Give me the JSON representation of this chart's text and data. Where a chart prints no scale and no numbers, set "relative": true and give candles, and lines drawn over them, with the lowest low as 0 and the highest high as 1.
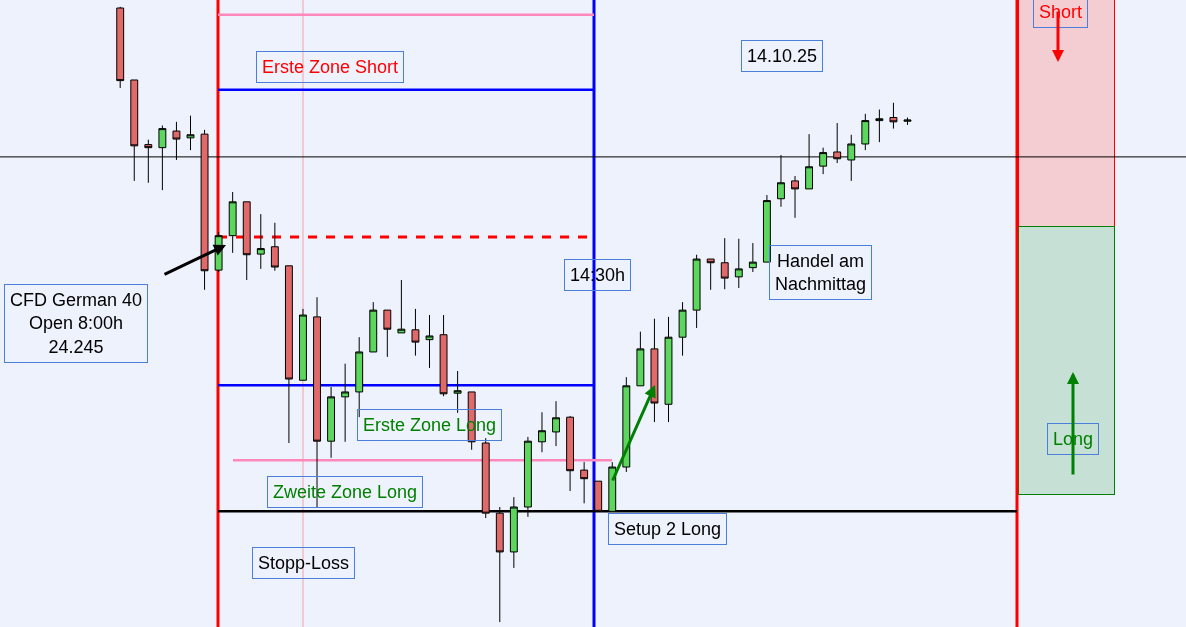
{
  "chart_data": {
    "type": "candlestick",
    "relative": true,
    "categories": [
      null,
      null,
      null,
      null,
      null,
      null,
      null,
      null,
      null,
      null,
      null,
      null,
      null,
      null,
      null,
      null,
      null,
      null,
      null,
      null,
      null,
      null,
      null,
      null,
      null,
      null,
      null,
      null,
      null,
      null,
      null,
      null,
      null,
      null,
      null,
      null,
      null,
      null,
      null,
      null,
      null,
      null,
      null,
      null,
      null,
      null,
      null,
      null,
      null,
      null,
      null,
      null,
      null,
      null,
      null,
      null,
      null
    ],
    "ohlc": [
      [
        0.998,
        1.0,
        0.868,
        0.88
      ],
      [
        0.881,
        0.881,
        0.717,
        0.774
      ],
      [
        0.776,
        0.784,
        0.714,
        0.771
      ],
      [
        0.771,
        0.807,
        0.702,
        0.802
      ],
      [
        0.798,
        0.813,
        0.751,
        0.785
      ],
      [
        0.787,
        0.823,
        0.767,
        0.792
      ],
      [
        0.793,
        0.8,
        0.54,
        0.571
      ],
      [
        0.572,
        0.634,
        0.569,
        0.628
      ],
      [
        0.628,
        0.699,
        0.6,
        0.683
      ],
      [
        0.683,
        0.683,
        0.556,
        0.597
      ],
      [
        0.598,
        0.663,
        0.574,
        0.607
      ],
      [
        0.61,
        0.649,
        0.571,
        0.577
      ],
      [
        0.579,
        0.579,
        0.291,
        0.395
      ],
      [
        0.393,
        0.509,
        0.393,
        0.499
      ],
      [
        0.496,
        0.528,
        0.187,
        0.294
      ],
      [
        0.294,
        0.382,
        0.267,
        0.366
      ],
      [
        0.366,
        0.42,
        0.293,
        0.374
      ],
      [
        0.374,
        0.463,
        0.333,
        0.439
      ],
      [
        0.439,
        0.52,
        0.439,
        0.507
      ],
      [
        0.507,
        0.507,
        0.431,
        0.476
      ],
      [
        0.47,
        0.556,
        0.47,
        0.476
      ],
      [
        0.475,
        0.509,
        0.433,
        0.455
      ],
      [
        0.459,
        0.499,
        0.413,
        0.465
      ],
      [
        0.467,
        0.499,
        0.367,
        0.371
      ],
      [
        0.372,
        0.408,
        0.34,
        0.376
      ],
      [
        0.374,
        0.374,
        0.28,
        0.293
      ],
      [
        0.291,
        0.299,
        0.169,
        0.177
      ],
      [
        0.177,
        0.187,
        0.0,
        0.114
      ],
      [
        0.114,
        0.203,
        0.088,
        0.187
      ],
      [
        0.187,
        0.301,
        0.171,
        0.294
      ],
      [
        0.293,
        0.341,
        0.276,
        0.311
      ],
      [
        0.309,
        0.359,
        0.286,
        0.332
      ],
      [
        0.333,
        0.335,
        0.213,
        0.246
      ],
      [
        0.247,
        0.26,
        0.193,
        0.233
      ],
      [
        0.229,
        0.229,
        0.179,
        0.18
      ],
      [
        0.18,
        0.26,
        0.18,
        0.252
      ],
      [
        0.252,
        0.398,
        0.244,
        0.384
      ],
      [
        0.384,
        0.472,
        0.384,
        0.444
      ],
      [
        0.444,
        0.493,
        0.325,
        0.356
      ],
      [
        0.354,
        0.496,
        0.325,
        0.463
      ],
      [
        0.463,
        0.52,
        0.433,
        0.507
      ],
      [
        0.507,
        0.597,
        0.478,
        0.59
      ],
      [
        0.59,
        0.59,
        0.54,
        0.584
      ],
      [
        0.584,
        0.624,
        0.541,
        0.559
      ],
      [
        0.561,
        0.623,
        0.543,
        0.574
      ],
      [
        0.576,
        0.616,
        0.569,
        0.585
      ],
      [
        0.585,
        0.694,
        0.585,
        0.685
      ],
      [
        0.688,
        0.759,
        0.675,
        0.714
      ],
      [
        0.717,
        0.725,
        0.657,
        0.704
      ],
      [
        0.704,
        0.793,
        0.704,
        0.74
      ],
      [
        0.741,
        0.771,
        0.728,
        0.763
      ],
      [
        0.764,
        0.811,
        0.746,
        0.753
      ],
      [
        0.751,
        0.792,
        0.717,
        0.777
      ],
      [
        0.777,
        0.826,
        0.767,
        0.815
      ],
      [
        0.815,
        0.833,
        0.78,
        0.818
      ],
      [
        0.82,
        0.844,
        0.802,
        0.813
      ],
      [
        0.814,
        0.82,
        0.808,
        0.816
      ]
    ],
    "ref_lines": [
      {
        "axis": "y",
        "value": 0.987,
        "color": "#ff88bb"
      },
      {
        "axis": "y",
        "value": 0.865,
        "color": "#0000ff"
      },
      {
        "axis": "y",
        "value": 0.626,
        "color": "#ff0000",
        "line_style": "dashed"
      },
      {
        "axis": "y",
        "value": 0.385,
        "color": "#0000ff"
      },
      {
        "axis": "y",
        "value": 0.263,
        "color": "#ff88bb"
      },
      {
        "axis": "y",
        "value": 0.18,
        "color": "#000000"
      },
      {
        "axis": "y",
        "value": 0.756,
        "color": "#000000"
      }
    ],
    "annotations": [
      "Erste Zone Short",
      "14.10.25",
      "CFD German 40\nOpen 8:00h\n24.245",
      "14:30h",
      "Erste Zone Long",
      "Zweite Zone Long",
      "Stopp-Loss",
      "Setup 2 Long",
      "Handel am\nNachmittag",
      "Short",
      "Long"
    ]
  }
}
